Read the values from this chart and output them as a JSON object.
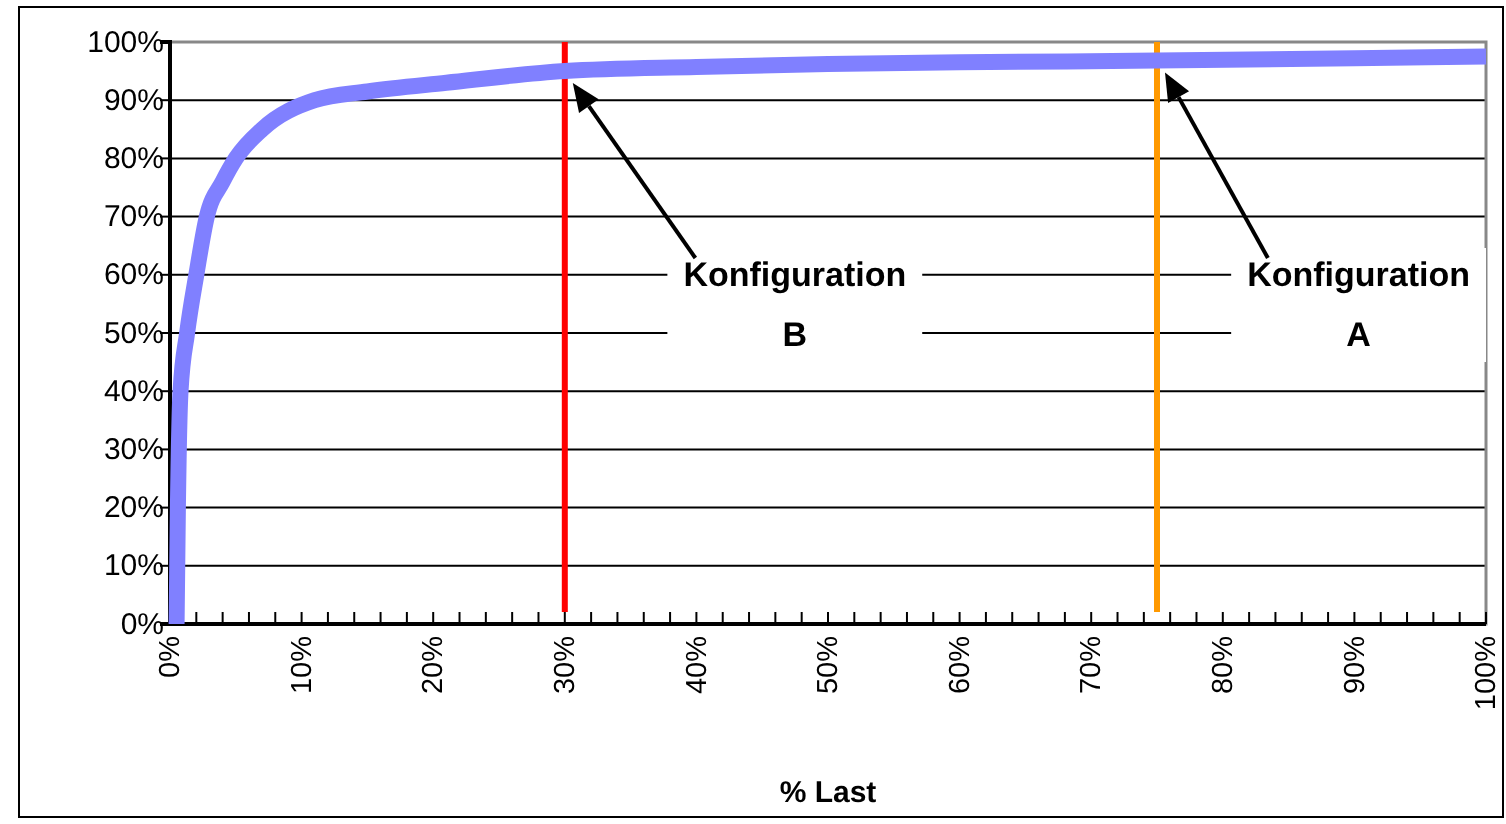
{
  "chart_data": {
    "type": "line",
    "xlabel": "% Last",
    "x": [
      0.5,
      0.6,
      0.8,
      1.3,
      2,
      2.8,
      4,
      5,
      7,
      11,
      15,
      21,
      30,
      40,
      50,
      60,
      75,
      90,
      100
    ],
    "series": [
      {
        "color": "#8080ff",
        "values": [
          0,
          20,
          40,
          50,
          60,
          70,
          76,
          80,
          85,
          90,
          91.5,
          93,
          95,
          95.7,
          96.2,
          96.5,
          96.8,
          97.2,
          97.5
        ]
      }
    ],
    "xlim": [
      0,
      100
    ],
    "ylim": [
      0,
      100
    ],
    "xticks": [
      {
        "value": 0,
        "label": "0%"
      },
      {
        "value": 2,
        "label": null
      },
      {
        "value": 4,
        "label": null
      },
      {
        "value": 6,
        "label": null
      },
      {
        "value": 8,
        "label": null
      },
      {
        "value": 10,
        "label": "10%"
      },
      {
        "value": 12,
        "label": null
      },
      {
        "value": 14,
        "label": null
      },
      {
        "value": 16,
        "label": null
      },
      {
        "value": 18,
        "label": null
      },
      {
        "value": 20,
        "label": "20%"
      },
      {
        "value": 22,
        "label": null
      },
      {
        "value": 24,
        "label": null
      },
      {
        "value": 26,
        "label": null
      },
      {
        "value": 28,
        "label": null
      },
      {
        "value": 30,
        "label": "30%"
      },
      {
        "value": 32,
        "label": null
      },
      {
        "value": 34,
        "label": null
      },
      {
        "value": 36,
        "label": null
      },
      {
        "value": 38,
        "label": null
      },
      {
        "value": 40,
        "label": "40%"
      },
      {
        "value": 42,
        "label": null
      },
      {
        "value": 44,
        "label": null
      },
      {
        "value": 46,
        "label": null
      },
      {
        "value": 48,
        "label": null
      },
      {
        "value": 50,
        "label": "50%"
      },
      {
        "value": 52,
        "label": null
      },
      {
        "value": 54,
        "label": null
      },
      {
        "value": 56,
        "label": null
      },
      {
        "value": 58,
        "label": null
      },
      {
        "value": 60,
        "label": "60%"
      },
      {
        "value": 62,
        "label": null
      },
      {
        "value": 64,
        "label": null
      },
      {
        "value": 66,
        "label": null
      },
      {
        "value": 68,
        "label": null
      },
      {
        "value": 70,
        "label": "70%"
      },
      {
        "value": 72,
        "label": null
      },
      {
        "value": 74,
        "label": null
      },
      {
        "value": 76,
        "label": null
      },
      {
        "value": 78,
        "label": null
      },
      {
        "value": 80,
        "label": "80%"
      },
      {
        "value": 82,
        "label": null
      },
      {
        "value": 84,
        "label": null
      },
      {
        "value": 86,
        "label": null
      },
      {
        "value": 88,
        "label": null
      },
      {
        "value": 90,
        "label": "90%"
      },
      {
        "value": 92,
        "label": null
      },
      {
        "value": 94,
        "label": null
      },
      {
        "value": 96,
        "label": null
      },
      {
        "value": 98,
        "label": null
      },
      {
        "value": 100,
        "label": "100%"
      }
    ],
    "yticks": [
      {
        "value": 0,
        "label": "0%"
      },
      {
        "value": 10,
        "label": "10%"
      },
      {
        "value": 20,
        "label": "20%"
      },
      {
        "value": 30,
        "label": "30%"
      },
      {
        "value": 40,
        "label": "40%"
      },
      {
        "value": 50,
        "label": "50%"
      },
      {
        "value": 60,
        "label": "60%"
      },
      {
        "value": 70,
        "label": "70%"
      },
      {
        "value": 80,
        "label": "80%"
      },
      {
        "value": 90,
        "label": "90%"
      },
      {
        "value": 100,
        "label": "100%"
      }
    ],
    "grid": "y",
    "marker": "none",
    "line_style": "solid",
    "ref_lines": [
      {
        "axis": "x",
        "value": 30,
        "color": "#ff0000"
      },
      {
        "axis": "x",
        "value": 75,
        "color": "#ff9900"
      }
    ],
    "annotations": [
      "Konfiguration\nB",
      "Konfiguration\nA"
    ]
  }
}
